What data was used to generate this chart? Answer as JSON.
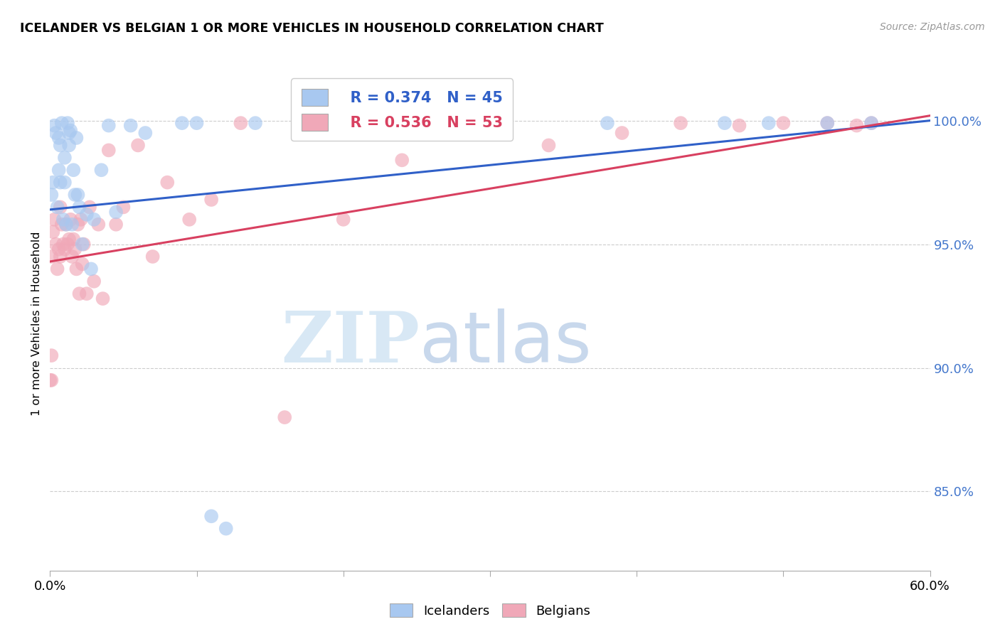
{
  "title": "ICELANDER VS BELGIAN 1 OR MORE VEHICLES IN HOUSEHOLD CORRELATION CHART",
  "source": "Source: ZipAtlas.com",
  "ylabel": "1 or more Vehicles in Household",
  "ytick_labels": [
    "100.0%",
    "95.0%",
    "90.0%",
    "85.0%"
  ],
  "ytick_values": [
    1.0,
    0.95,
    0.9,
    0.85
  ],
  "xmin": 0.0,
  "xmax": 0.6,
  "ymin": 0.818,
  "ymax": 1.018,
  "legend_blue_r": "R = 0.374",
  "legend_blue_n": "N = 45",
  "legend_pink_r": "R = 0.536",
  "legend_pink_n": "N = 53",
  "blue_color": "#a8c8f0",
  "pink_color": "#f0a8b8",
  "blue_line_color": "#3060c8",
  "pink_line_color": "#d84060",
  "blue_regression_x0": 0.0,
  "blue_regression_y0": 0.964,
  "blue_regression_x1": 0.6,
  "blue_regression_y1": 1.0,
  "pink_regression_x0": 0.0,
  "pink_regression_y0": 0.943,
  "pink_regression_x1": 0.6,
  "pink_regression_y1": 1.002,
  "icelanders_x": [
    0.001,
    0.002,
    0.003,
    0.004,
    0.005,
    0.006,
    0.006,
    0.007,
    0.007,
    0.008,
    0.009,
    0.01,
    0.01,
    0.011,
    0.012,
    0.013,
    0.013,
    0.014,
    0.015,
    0.016,
    0.017,
    0.018,
    0.019,
    0.02,
    0.022,
    0.025,
    0.028,
    0.03,
    0.035,
    0.04,
    0.045,
    0.055,
    0.065,
    0.09,
    0.1,
    0.11,
    0.12,
    0.14,
    0.2,
    0.25,
    0.38,
    0.46,
    0.49,
    0.53,
    0.56
  ],
  "icelanders_y": [
    0.97,
    0.975,
    0.998,
    0.995,
    0.965,
    0.993,
    0.98,
    0.99,
    0.975,
    0.999,
    0.96,
    0.985,
    0.975,
    0.958,
    0.999,
    0.99,
    0.995,
    0.996,
    0.958,
    0.98,
    0.97,
    0.993,
    0.97,
    0.965,
    0.95,
    0.962,
    0.94,
    0.96,
    0.98,
    0.998,
    0.963,
    0.998,
    0.995,
    0.999,
    0.999,
    0.84,
    0.835,
    0.999,
    0.999,
    0.999,
    0.999,
    0.999,
    0.999,
    0.999,
    0.999
  ],
  "belgians_x": [
    0.001,
    0.002,
    0.003,
    0.004,
    0.005,
    0.006,
    0.007,
    0.007,
    0.008,
    0.009,
    0.01,
    0.011,
    0.012,
    0.013,
    0.014,
    0.015,
    0.016,
    0.017,
    0.018,
    0.019,
    0.02,
    0.021,
    0.022,
    0.023,
    0.025,
    0.027,
    0.03,
    0.033,
    0.036,
    0.04,
    0.045,
    0.05,
    0.06,
    0.07,
    0.08,
    0.095,
    0.11,
    0.13,
    0.16,
    0.2,
    0.24,
    0.29,
    0.34,
    0.39,
    0.43,
    0.47,
    0.5,
    0.53,
    0.55,
    0.56,
    0.0,
    0.001,
    0.001
  ],
  "belgians_y": [
    0.945,
    0.955,
    0.96,
    0.95,
    0.94,
    0.948,
    0.965,
    0.945,
    0.958,
    0.95,
    0.948,
    0.958,
    0.95,
    0.952,
    0.96,
    0.945,
    0.952,
    0.948,
    0.94,
    0.958,
    0.93,
    0.96,
    0.942,
    0.95,
    0.93,
    0.965,
    0.935,
    0.958,
    0.928,
    0.988,
    0.958,
    0.965,
    0.99,
    0.945,
    0.975,
    0.96,
    0.968,
    0.999,
    0.88,
    0.96,
    0.984,
    0.999,
    0.99,
    0.995,
    0.999,
    0.998,
    0.999,
    0.999,
    0.998,
    0.999,
    0.895,
    0.895,
    0.905
  ]
}
